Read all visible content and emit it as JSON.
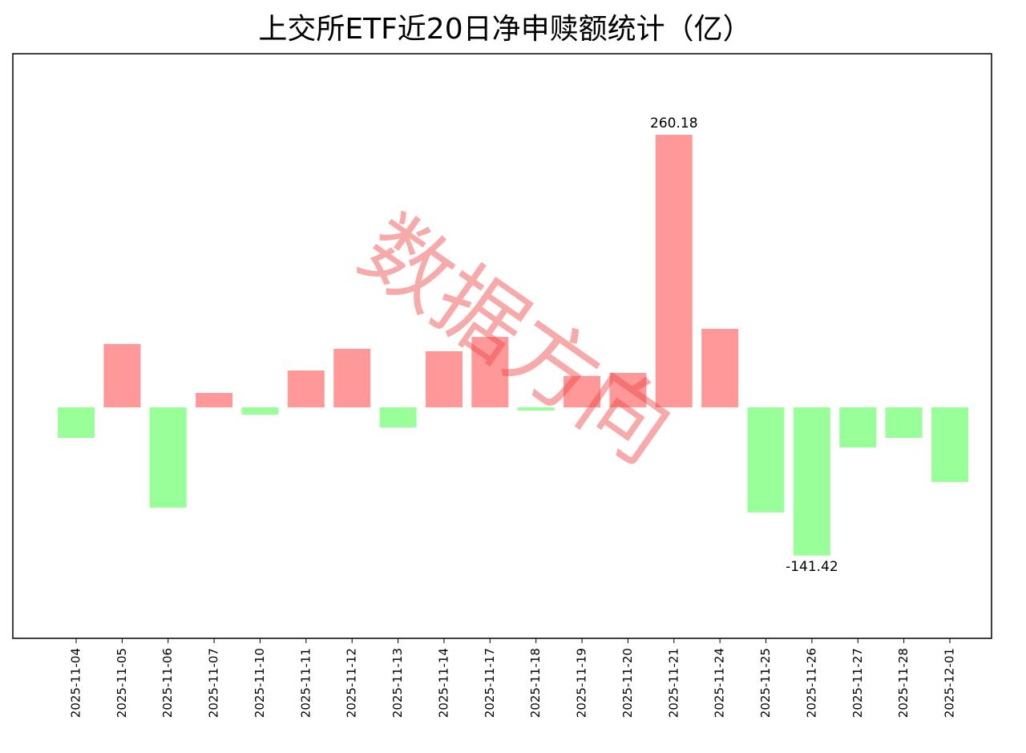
{
  "chart_data": {
    "type": "bar",
    "title": "上交所ETF近20日净申赎额统计（亿）",
    "categories": [
      "2025-11-04",
      "2025-11-05",
      "2025-11-06",
      "2025-11-07",
      "2025-11-10",
      "2025-11-11",
      "2025-11-12",
      "2025-11-13",
      "2025-11-14",
      "2025-11-17",
      "2025-11-18",
      "2025-11-19",
      "2025-11-20",
      "2025-11-21",
      "2025-11-24",
      "2025-11-25",
      "2025-11-26",
      "2025-11-27",
      "2025-11-28",
      "2025-12-01"
    ],
    "values": [
      -29.1,
      60.5,
      -95.7,
      13.8,
      -6.9,
      35.2,
      55.9,
      -19.1,
      53.6,
      67.3,
      -3.1,
      30.0,
      32.9,
      260.18,
      75.0,
      -100.2,
      -141.42,
      -38.3,
      -29.1,
      -71.2
    ],
    "value_labels": [
      null,
      null,
      null,
      null,
      null,
      null,
      null,
      null,
      null,
      null,
      null,
      null,
      null,
      "260.18",
      null,
      null,
      "-141.42",
      null,
      null,
      null
    ],
    "positive_color": "#ff9999",
    "negative_color": "#99ff99",
    "ylim": [
      -220.4,
      337.5
    ],
    "watermark": "数据方向"
  }
}
